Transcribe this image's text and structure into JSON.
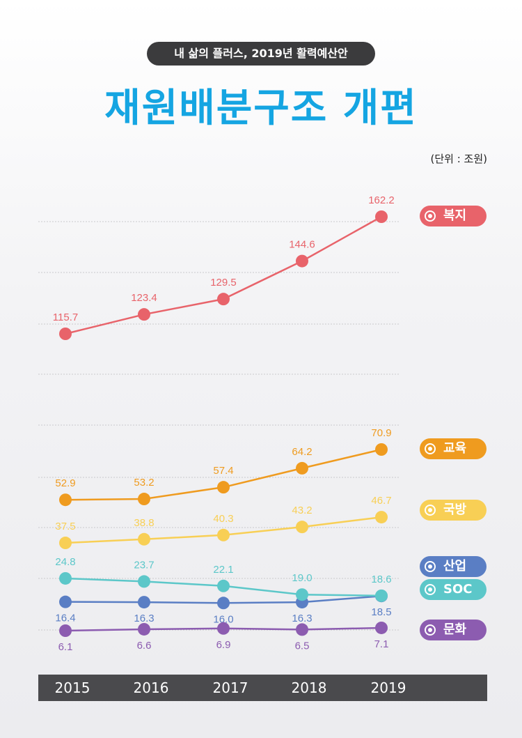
{
  "header": {
    "pill": "내 삶의 플러스, 2019년 활력예산안",
    "title": "재원배분구조 개편",
    "unit": "(단위 : 조원)"
  },
  "chart_data": {
    "type": "line",
    "x": [
      "2015",
      "2016",
      "2017",
      "2018",
      "2019"
    ],
    "series": [
      {
        "name": "복지",
        "color": "#e8636a",
        "values": [
          115.7,
          123.4,
          129.5,
          144.6,
          162.2
        ],
        "labels": [
          "115.7",
          "123.4",
          "129.5",
          "144.6",
          "162.2"
        ]
      },
      {
        "name": "교육",
        "color": "#ef9b1f",
        "values": [
          52.9,
          53.2,
          57.4,
          64.2,
          70.9
        ],
        "labels": [
          "52.9",
          "53.2",
          "57.4",
          "64.2",
          "70.9"
        ]
      },
      {
        "name": "국방",
        "color": "#f8cf55",
        "values": [
          37.5,
          38.8,
          40.3,
          43.2,
          46.7
        ],
        "labels": [
          "37.5",
          "38.8",
          "40.3",
          "43.2",
          "46.7"
        ]
      },
      {
        "name": "산업",
        "color": "#5a7ec4",
        "values": [
          16.4,
          16.3,
          16.0,
          16.3,
          18.5
        ],
        "labels": [
          "16.4",
          "16.3",
          "16.0",
          "16.3",
          "18.5"
        ]
      },
      {
        "name": "SOC",
        "color": "#5cc7c9",
        "values": [
          24.8,
          23.7,
          22.1,
          19.0,
          18.6
        ],
        "labels": [
          "24.8",
          "23.7",
          "22.1",
          "19.0",
          "18.6"
        ]
      },
      {
        "name": "문화",
        "color": "#8c5cb0",
        "values": [
          6.1,
          6.6,
          6.9,
          6.5,
          7.1
        ],
        "labels": [
          "6.1",
          "6.6",
          "6.9",
          "6.5",
          "7.1"
        ]
      }
    ],
    "grid": "horizontal dotted",
    "legend_placement": "right"
  }
}
